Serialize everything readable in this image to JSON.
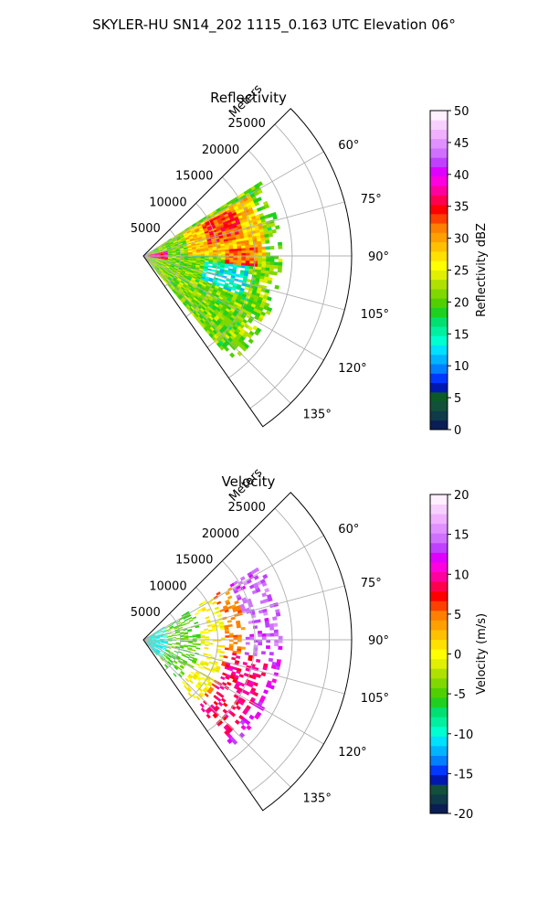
{
  "title": "SKYLER-HU  SN14_202  1115_0.163 UTC Elevation 06°",
  "chart_data": [
    {
      "type": "heatmap",
      "subtype": "polar-sector",
      "title": "Reflectivity",
      "range_label": "Meters",
      "range_max": 28000,
      "range_ticks": [
        5000,
        10000,
        15000,
        20000,
        25000
      ],
      "range_tick_labels": [
        "5000",
        "10000",
        "15000",
        "20000",
        "25000"
      ],
      "azimuth_range_deg": [
        45,
        145
      ],
      "azimuth_ticks_deg": [
        60,
        75,
        90,
        105,
        120,
        135
      ],
      "azimuth_tick_labels": [
        "60°",
        "75°",
        "90°",
        "105°",
        "120°",
        "135°"
      ],
      "grid": true,
      "colorbar": {
        "label": "Reflectivity dBZ",
        "vmin": 0,
        "vmax": 50,
        "ticks": [
          0,
          5,
          10,
          15,
          20,
          25,
          30,
          35,
          40,
          45,
          50
        ],
        "tick_labels": [
          "0",
          "5",
          "10",
          "15",
          "20",
          "25",
          "30",
          "35",
          "40",
          "45",
          "50"
        ],
        "colors": [
          "#0a1e55",
          "#0f3a4a",
          "#12503a",
          "#0a5a2a",
          "#0018b0",
          "#0038ff",
          "#0080ff",
          "#00b4ff",
          "#00e0ff",
          "#00ffd0",
          "#00f0a0",
          "#00e070",
          "#20d020",
          "#50d000",
          "#80d800",
          "#b0e000",
          "#e0f000",
          "#ffff00",
          "#ffe000",
          "#ffc000",
          "#ffa000",
          "#ff8000",
          "#ff4000",
          "#ff0000",
          "#ff0050",
          "#ff00a0",
          "#ff00e0",
          "#e000ff",
          "#c040ff",
          "#d070ff",
          "#e090ff",
          "#f0b0ff",
          "#f8d0ff",
          "#fff0ff"
        ]
      },
      "field_regions": [
        {
          "az": [
            57,
            140
          ],
          "r": [
            600,
            18500
          ],
          "value": 21
        },
        {
          "az": [
            60,
            90
          ],
          "r": [
            6000,
            16500
          ],
          "value": 28
        },
        {
          "az": [
            62,
            80
          ],
          "r": [
            9000,
            14000
          ],
          "value": 33
        },
        {
          "az": [
            85,
            96
          ],
          "r": [
            11000,
            15500
          ],
          "value": 32
        },
        {
          "az": [
            96,
            112
          ],
          "r": [
            8000,
            14500
          ],
          "value": 14
        },
        {
          "az": [
            78,
            100
          ],
          "r": [
            600,
            3500
          ],
          "value": 36
        },
        {
          "az": [
            84,
            96
          ],
          "r": [
            300,
            2200
          ],
          "value": 38
        }
      ]
    },
    {
      "type": "heatmap",
      "subtype": "polar-sector",
      "title": "Velocity",
      "range_label": "Meters",
      "range_max": 28000,
      "range_ticks": [
        5000,
        10000,
        15000,
        20000,
        25000
      ],
      "range_tick_labels": [
        "5000",
        "10000",
        "15000",
        "20000",
        "25000"
      ],
      "azimuth_range_deg": [
        45,
        145
      ],
      "azimuth_ticks_deg": [
        60,
        75,
        90,
        105,
        120,
        135
      ],
      "azimuth_tick_labels": [
        "60°",
        "75°",
        "90°",
        "105°",
        "120°",
        "135°"
      ],
      "grid": true,
      "colorbar": {
        "label": "Velocity (m/s)",
        "vmin": -20,
        "vmax": 20,
        "ticks": [
          -20,
          -15,
          -10,
          -5,
          0,
          5,
          10,
          15,
          20
        ],
        "tick_labels": [
          "-20",
          "-15",
          "-10",
          "-5",
          "0",
          "5",
          "10",
          "15",
          "20"
        ],
        "colors": [
          "#0a1e55",
          "#0f3a4a",
          "#12503a",
          "#0018b0",
          "#0038ff",
          "#0080ff",
          "#00b4ff",
          "#00e0ff",
          "#00ffd0",
          "#00f0a0",
          "#00e070",
          "#20d020",
          "#50d000",
          "#80d800",
          "#b0e000",
          "#e0f000",
          "#ffff00",
          "#ffe000",
          "#ffc000",
          "#ffa000",
          "#ff8000",
          "#ff4000",
          "#ff0000",
          "#ff0050",
          "#ff00a0",
          "#ff00e0",
          "#e000ff",
          "#c040ff",
          "#d070ff",
          "#e090ff",
          "#f0b0ff",
          "#f8d0ff",
          "#fff0ff"
        ]
      },
      "field_regions": [
        {
          "az": [
            57,
            140
          ],
          "r": [
            300,
            3500
          ],
          "value": -10
        },
        {
          "az": [
            57,
            140
          ],
          "r": [
            3500,
            7500
          ],
          "value": -5
        },
        {
          "az": [
            57,
            140
          ],
          "r": [
            7500,
            11000
          ],
          "value": 0
        },
        {
          "az": [
            57,
            140
          ],
          "r": [
            11000,
            13500
          ],
          "value": 5
        },
        {
          "az": [
            57,
            140
          ],
          "r": [
            13500,
            18500
          ],
          "value": 12
        },
        {
          "az": [
            57,
            98
          ],
          "r": [
            13500,
            18500
          ],
          "value": 14
        },
        {
          "az": [
            98,
            140
          ],
          "r": [
            11500,
            17000
          ],
          "value": 9
        }
      ]
    }
  ]
}
